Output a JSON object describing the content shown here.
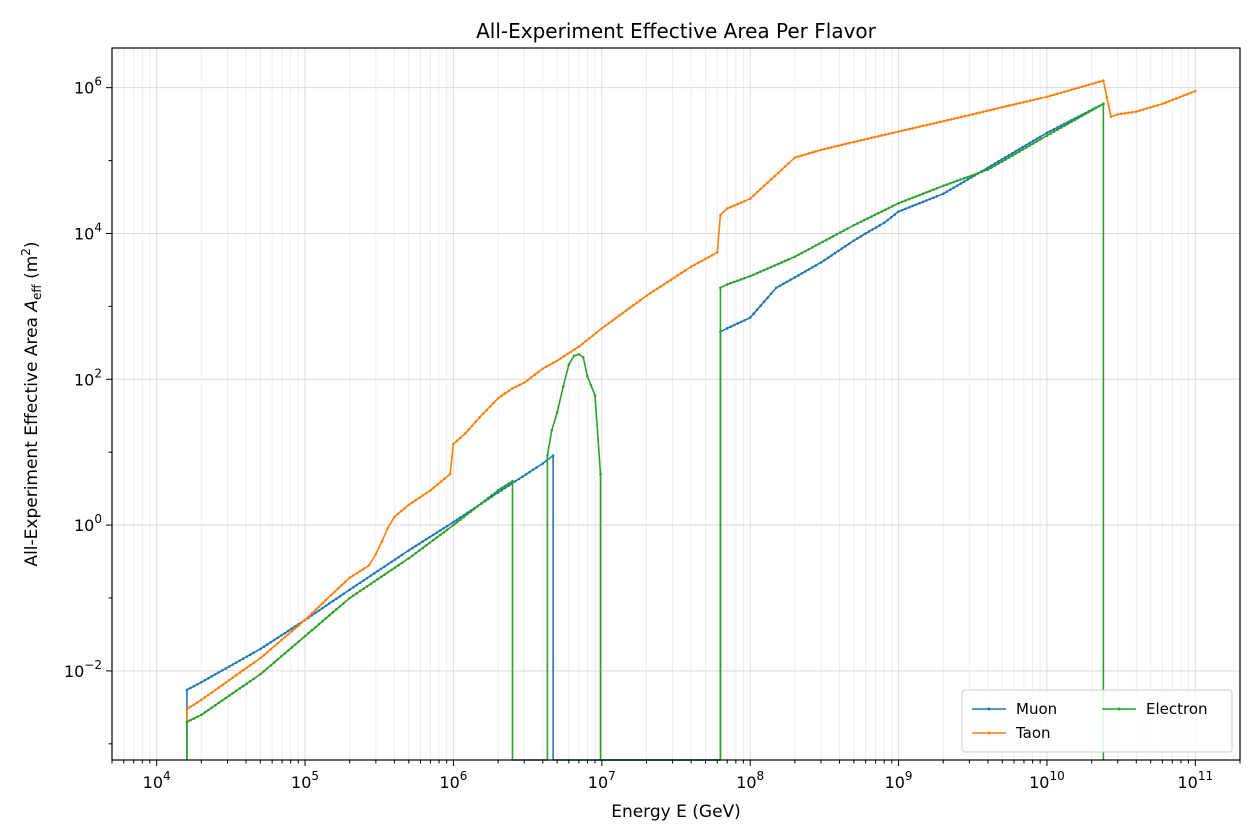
{
  "chart_data": {
    "type": "line",
    "title": "All-Experiment Effective Area Per Flavor",
    "xlabel": "Energy E (GeV)",
    "ylabel": {
      "main": "All-Experiment Effective Area ",
      "var": "A",
      "sub": "eff",
      "unit_pre": " (m",
      "unit_sup": "2",
      "unit_post": ")"
    },
    "xscale": "log",
    "yscale": "log",
    "xlim": [
      5000,
      200000000000
    ],
    "ylim": [
      0.0006,
      3500000
    ],
    "grid": true,
    "legend_placement": "lower-right",
    "xticks": [
      {
        "value": 10000,
        "base": "10",
        "exp": "4"
      },
      {
        "value": 100000,
        "base": "10",
        "exp": "5"
      },
      {
        "value": 1000000,
        "base": "10",
        "exp": "6"
      },
      {
        "value": 10000000,
        "base": "10",
        "exp": "7"
      },
      {
        "value": 100000000,
        "base": "10",
        "exp": "8"
      },
      {
        "value": 1000000000,
        "base": "10",
        "exp": "9"
      },
      {
        "value": 10000000000,
        "base": "10",
        "exp": "10"
      },
      {
        "value": 100000000000,
        "base": "10",
        "exp": "11"
      }
    ],
    "yticks": [
      {
        "value": 0.01,
        "base": "10",
        "exp": "−2"
      },
      {
        "value": 1,
        "base": "10",
        "exp": "0"
      },
      {
        "value": 100,
        "base": "10",
        "exp": "2"
      },
      {
        "value": 10000,
        "base": "10",
        "exp": "4"
      },
      {
        "value": 1000000,
        "base": "10",
        "exp": "6"
      }
    ],
    "series": [
      {
        "name": "Muon",
        "color": "#1f77b4",
        "x": [
          16000,
          16000,
          20000,
          50000,
          100000,
          200000,
          500000,
          1000000,
          2000000,
          4000000,
          4700000,
          4700000,
          63000000,
          63000000,
          70000000,
          100000000,
          150000000,
          200000000,
          300000000,
          500000000,
          600000000,
          800000000,
          1000000000,
          2000000000,
          4000000000,
          10000000000,
          24000000000
        ],
        "y": [
          0.0006,
          0.0055,
          0.007,
          0.02,
          0.05,
          0.13,
          0.45,
          1.1,
          2.8,
          7,
          9,
          0.0006,
          0.0006,
          450,
          500,
          700,
          1800,
          2500,
          4000,
          8000,
          10000,
          14000,
          20000,
          35000,
          80000,
          240000,
          600000
        ]
      },
      {
        "name": "Taon",
        "color": "#ff7f0e",
        "x": [
          16000,
          16000,
          20000,
          50000,
          100000,
          150000,
          200000,
          270000,
          300000,
          330000,
          360000,
          400000,
          500000,
          700000,
          950000,
          1000000,
          1200000,
          1500000,
          2000000,
          2500000,
          3000000,
          4000000,
          5000000,
          7000000,
          10000000,
          20000000,
          40000000,
          60000000,
          63000000,
          70000000,
          100000000,
          200000000,
          300000000,
          500000000,
          1000000000,
          3000000000,
          5000000000,
          10000000000,
          24000000000,
          27000000000,
          30000000000,
          40000000000,
          60000000000,
          100000000000
        ],
        "y": [
          0.002,
          0.003,
          0.004,
          0.015,
          0.05,
          0.11,
          0.19,
          0.28,
          0.4,
          0.6,
          0.9,
          1.3,
          1.9,
          3,
          5,
          13,
          18,
          30,
          55,
          75,
          90,
          140,
          180,
          280,
          500,
          1400,
          3500,
          5500,
          18000,
          22000,
          30000,
          110000,
          140000,
          180000,
          250000,
          420000,
          540000,
          750000,
          1250000,
          400000,
          430000,
          470000,
          600000,
          900000
        ]
      },
      {
        "name": "Electron",
        "color": "#2ca02c",
        "x": [
          16000,
          16000,
          20000,
          50000,
          100000,
          200000,
          500000,
          1000000,
          2000000,
          2500000,
          2500000,
          4300000,
          4300000,
          4600000,
          5000000,
          5500000,
          6000000,
          6500000,
          7000000,
          7500000,
          8000000,
          9000000,
          9800000,
          9800000,
          63000000,
          63000000,
          70000000,
          100000000,
          200000000,
          500000000,
          1000000000,
          2000000000,
          4000000000,
          10000000000,
          24000000000,
          24000000000
        ],
        "y": [
          0.0006,
          0.002,
          0.0025,
          0.009,
          0.03,
          0.1,
          0.35,
          1.0,
          3.0,
          4.0,
          0.0006,
          0.0006,
          9,
          20,
          35,
          80,
          160,
          210,
          220,
          200,
          110,
          60,
          5,
          0.0006,
          0.0006,
          1800,
          2000,
          2600,
          4800,
          13000,
          26000,
          45000,
          75000,
          220000,
          600000,
          0.0006
        ]
      }
    ]
  }
}
